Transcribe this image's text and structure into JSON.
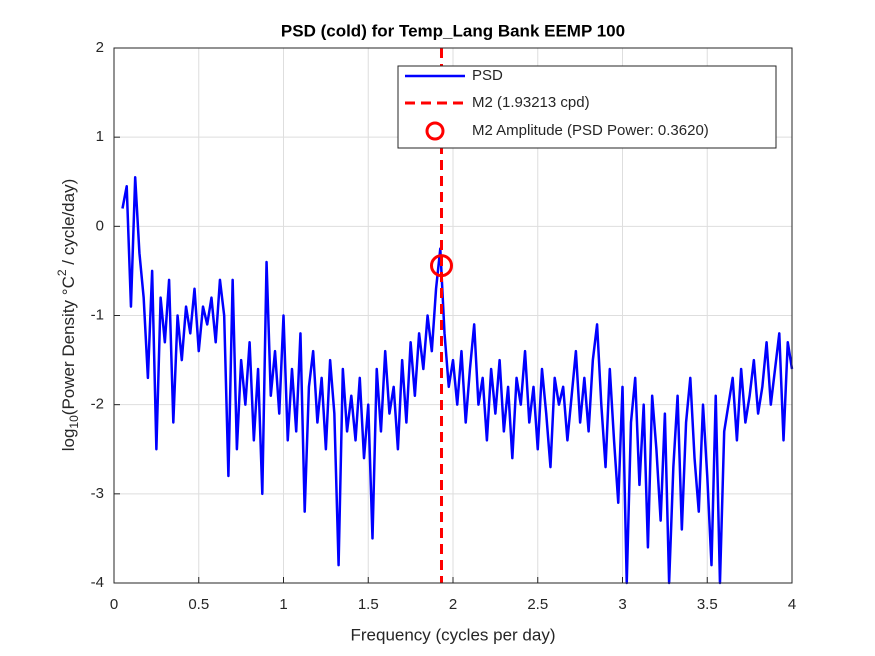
{
  "chart_data": {
    "type": "line",
    "title": "PSD (cold) for Temp_Lang Bank EEMP 100",
    "xlabel": "Frequency (cycles per day)",
    "ylabel_parts": [
      "log",
      "10",
      "(Power Density °C",
      "2",
      " / cycle/day)"
    ],
    "xlim": [
      0,
      4
    ],
    "ylim": [
      -4,
      2
    ],
    "xticks": [
      0,
      0.5,
      1,
      1.5,
      2,
      2.5,
      3,
      3.5,
      4
    ],
    "yticks": [
      -4,
      -3,
      -2,
      -1,
      0,
      1,
      2
    ],
    "grid": true,
    "legend": "northeast",
    "x": [
      0.05,
      0.075,
      0.1,
      0.125,
      0.15,
      0.175,
      0.2,
      0.225,
      0.25,
      0.275,
      0.3,
      0.325,
      0.35,
      0.375,
      0.4,
      0.425,
      0.45,
      0.475,
      0.5,
      0.525,
      0.55,
      0.575,
      0.6,
      0.625,
      0.65,
      0.675,
      0.7,
      0.725,
      0.75,
      0.775,
      0.8,
      0.825,
      0.85,
      0.875,
      0.9,
      0.925,
      0.95,
      0.975,
      1.0,
      1.025,
      1.05,
      1.075,
      1.1,
      1.125,
      1.15,
      1.175,
      1.2,
      1.225,
      1.25,
      1.275,
      1.3,
      1.325,
      1.35,
      1.375,
      1.4,
      1.425,
      1.45,
      1.475,
      1.5,
      1.525,
      1.55,
      1.575,
      1.6,
      1.625,
      1.65,
      1.675,
      1.7,
      1.725,
      1.75,
      1.775,
      1.8,
      1.825,
      1.85,
      1.875,
      1.9,
      1.925,
      1.95,
      1.975,
      2.0,
      2.025,
      2.05,
      2.075,
      2.1,
      2.125,
      2.15,
      2.175,
      2.2,
      2.225,
      2.25,
      2.275,
      2.3,
      2.325,
      2.35,
      2.375,
      2.4,
      2.425,
      2.45,
      2.475,
      2.5,
      2.525,
      2.55,
      2.575,
      2.6,
      2.625,
      2.65,
      2.675,
      2.7,
      2.725,
      2.75,
      2.775,
      2.8,
      2.825,
      2.85,
      2.875,
      2.9,
      2.925,
      2.95,
      2.975,
      3.0,
      3.025,
      3.05,
      3.075,
      3.1,
      3.125,
      3.15,
      3.175,
      3.2,
      3.225,
      3.25,
      3.275,
      3.3,
      3.325,
      3.35,
      3.375,
      3.4,
      3.425,
      3.45,
      3.475,
      3.5,
      3.525,
      3.55,
      3.575,
      3.6,
      3.625,
      3.65,
      3.675,
      3.7,
      3.725,
      3.75,
      3.775,
      3.8,
      3.825,
      3.85,
      3.875,
      3.9,
      3.925,
      3.95,
      3.975,
      4.0
    ],
    "series": [
      {
        "name": "PSD",
        "color": "#0000ff",
        "values": [
          0.2,
          0.45,
          -0.9,
          0.55,
          -0.3,
          -0.8,
          -1.7,
          -0.5,
          -2.5,
          -0.8,
          -1.3,
          -0.6,
          -2.2,
          -1.0,
          -1.5,
          -0.9,
          -1.2,
          -0.7,
          -1.4,
          -0.9,
          -1.1,
          -0.8,
          -1.3,
          -0.6,
          -1.0,
          -2.8,
          -0.6,
          -2.5,
          -1.5,
          -2.0,
          -1.3,
          -2.4,
          -1.6,
          -3.0,
          -0.4,
          -1.9,
          -1.4,
          -2.1,
          -1.0,
          -2.4,
          -1.6,
          -2.3,
          -1.2,
          -3.2,
          -1.8,
          -1.4,
          -2.2,
          -1.7,
          -2.5,
          -1.5,
          -2.1,
          -3.8,
          -1.6,
          -2.3,
          -1.9,
          -2.4,
          -1.7,
          -2.6,
          -2.0,
          -3.5,
          -1.6,
          -2.3,
          -1.4,
          -2.1,
          -1.8,
          -2.5,
          -1.5,
          -2.2,
          -1.3,
          -1.9,
          -1.2,
          -1.6,
          -1.0,
          -1.4,
          -0.7,
          -0.25,
          -1.2,
          -1.8,
          -1.5,
          -2.0,
          -1.4,
          -2.2,
          -1.6,
          -1.1,
          -2.0,
          -1.7,
          -2.4,
          -1.6,
          -2.1,
          -1.5,
          -2.3,
          -1.8,
          -2.6,
          -1.7,
          -2.0,
          -1.4,
          -2.2,
          -1.8,
          -2.5,
          -1.6,
          -2.1,
          -2.7,
          -1.7,
          -2.0,
          -1.8,
          -2.4,
          -1.9,
          -1.4,
          -2.2,
          -1.7,
          -2.3,
          -1.5,
          -1.1,
          -2.0,
          -2.7,
          -1.6,
          -2.4,
          -3.1,
          -1.8,
          -4.0,
          -2.2,
          -1.7,
          -2.9,
          -2.0,
          -3.6,
          -1.9,
          -2.5,
          -3.3,
          -2.1,
          -4.0,
          -2.7,
          -1.9,
          -3.4,
          -2.2,
          -1.7,
          -2.6,
          -3.2,
          -2.0,
          -2.8,
          -3.8,
          -1.9,
          -4.0,
          -2.3,
          -2.0,
          -1.7,
          -2.4,
          -1.6,
          -2.2,
          -1.9,
          -1.5,
          -2.1,
          -1.8,
          -1.3,
          -2.0,
          -1.6,
          -1.2,
          -2.4,
          -1.3,
          -1.6
        ]
      }
    ],
    "m2_line": {
      "name": "M2 (1.93213 cpd)",
      "color": "#ff0000",
      "x": 1.93213
    },
    "m2_point": {
      "name": "M2 Amplitude (PSD Power: 0.3620)",
      "color": "#ff0000",
      "x": 1.93213,
      "y": -0.441
    }
  }
}
